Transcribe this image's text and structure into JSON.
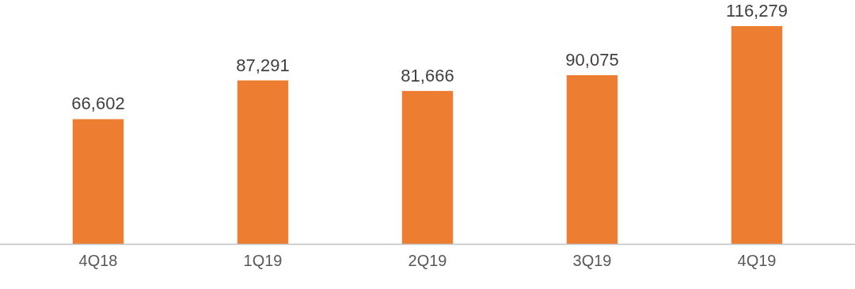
{
  "chart_data": {
    "type": "bar",
    "categories": [
      "4Q18",
      "1Q19",
      "2Q19",
      "3Q19",
      "4Q19"
    ],
    "values": [
      66602,
      87291,
      81666,
      90075,
      116279
    ],
    "value_labels": [
      "66,602",
      "87,291",
      "81,666",
      "90,075",
      "116,279"
    ],
    "color": "#ed7d31"
  }
}
